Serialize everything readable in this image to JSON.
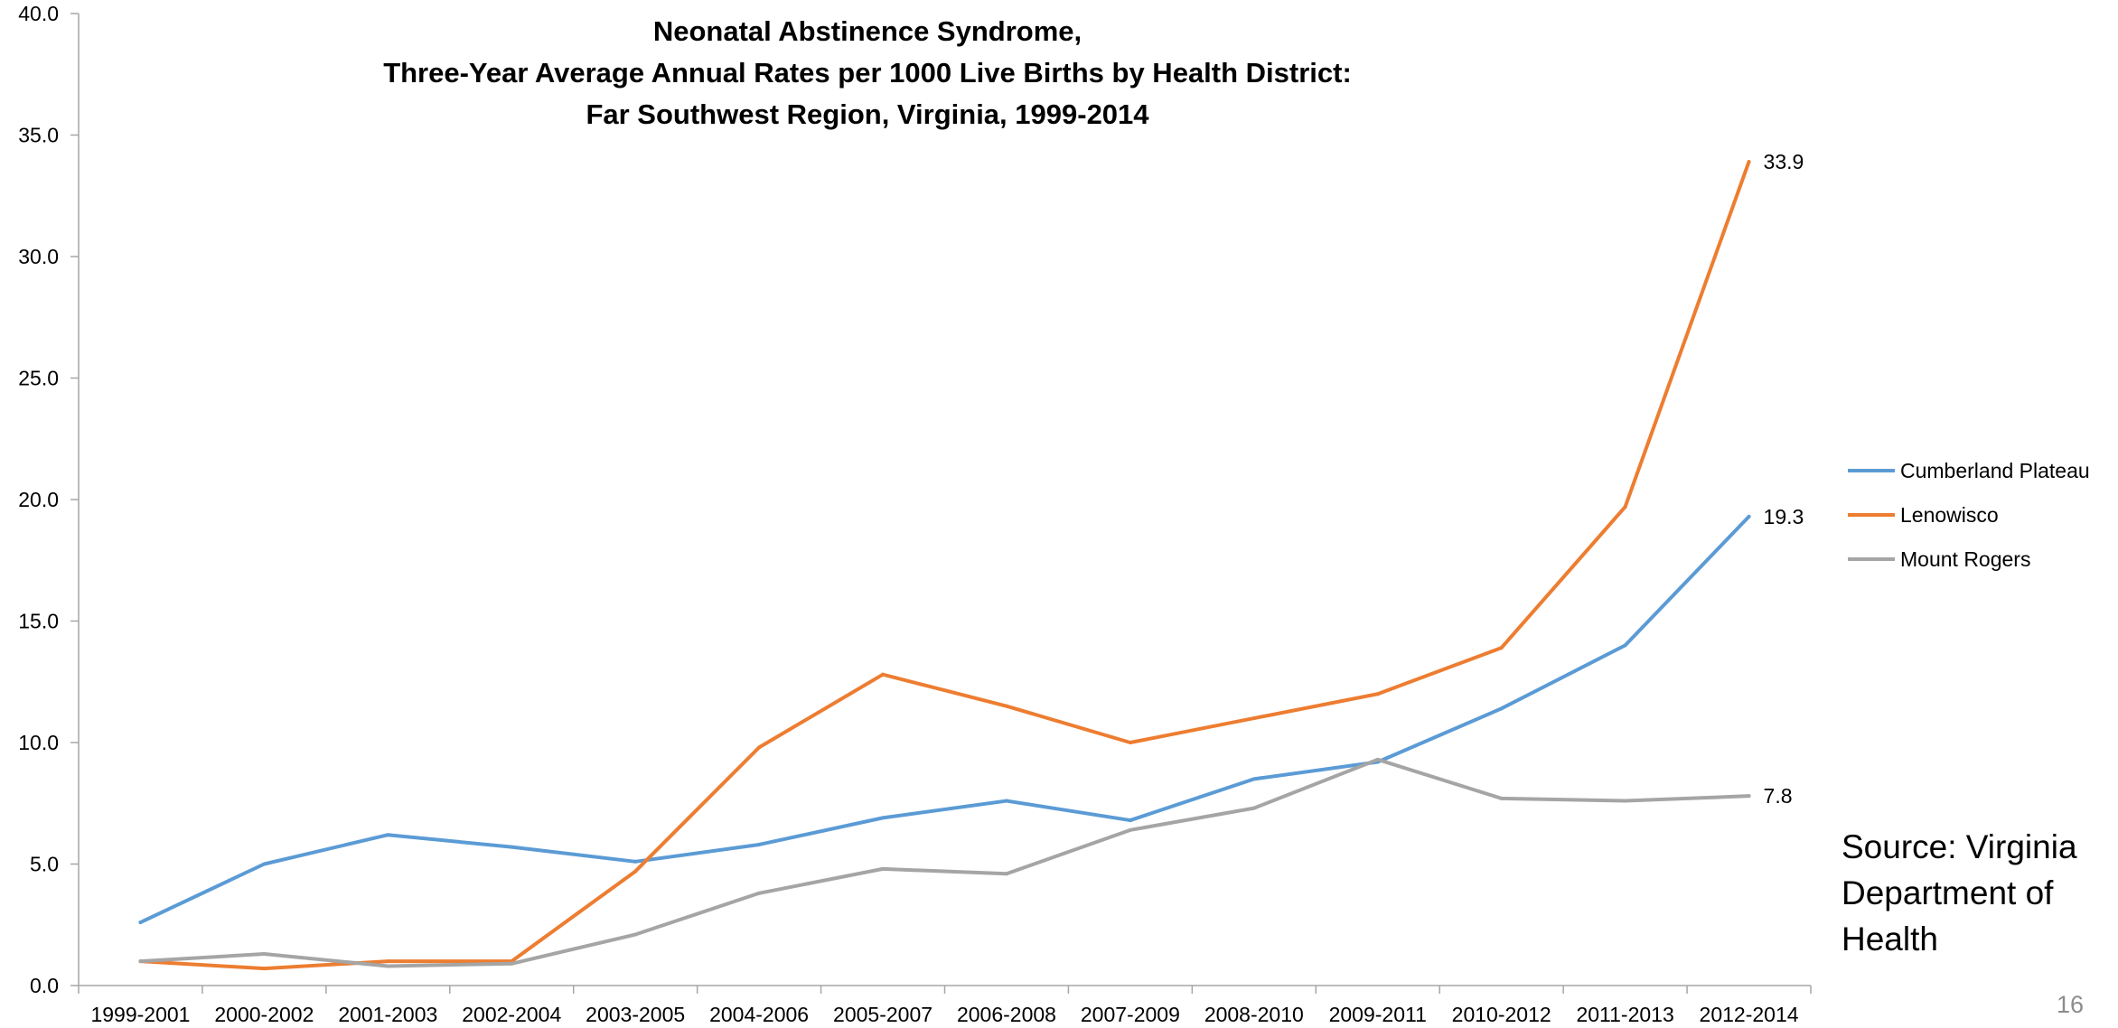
{
  "chart_data": {
    "type": "line",
    "title_lines": [
      "Neonatal Abstinence Syndrome,",
      "Three-Year Average Annual Rates per 1000 Live Births by Health District:",
      "Far Southwest Region, Virginia, 1999-2014"
    ],
    "categories": [
      "1999-2001",
      "2000-2002",
      "2001-2003",
      "2002-2004",
      "2003-2005",
      "2004-2006",
      "2005-2007",
      "2006-2008",
      "2007-2009",
      "2008-2010",
      "2009-2011",
      "2010-2012",
      "2011-2013",
      "2012-2014"
    ],
    "series": [
      {
        "name": "Cumberland Plateau",
        "color": "#5b9bd5",
        "values": [
          2.6,
          5.0,
          6.2,
          5.7,
          5.1,
          5.8,
          6.9,
          7.6,
          6.8,
          8.5,
          9.2,
          11.4,
          14.0,
          19.3
        ],
        "end_label": "19.3"
      },
      {
        "name": "Lenowisco",
        "color": "#ed7d31",
        "values": [
          1.0,
          0.7,
          1.0,
          1.0,
          4.7,
          9.8,
          12.8,
          11.5,
          10.0,
          11.0,
          12.0,
          13.9,
          19.7,
          33.9
        ],
        "end_label": "33.9"
      },
      {
        "name": "Mount Rogers",
        "color": "#a5a5a5",
        "values": [
          1.0,
          1.3,
          0.8,
          0.9,
          2.1,
          3.8,
          4.8,
          4.6,
          6.4,
          7.3,
          9.3,
          7.7,
          7.6,
          7.8
        ],
        "end_label": "7.8"
      }
    ],
    "y_ticks": [
      "0.0",
      "5.0",
      "10.0",
      "15.0",
      "20.0",
      "25.0",
      "30.0",
      "35.0",
      "40.0"
    ],
    "ylim": [
      0,
      40
    ],
    "legend_position": "right",
    "grid": false,
    "axis_color": "#a6a6a6"
  },
  "source_lines": [
    "Source: Virginia",
    "Department of",
    "Health"
  ],
  "page_number": "16"
}
